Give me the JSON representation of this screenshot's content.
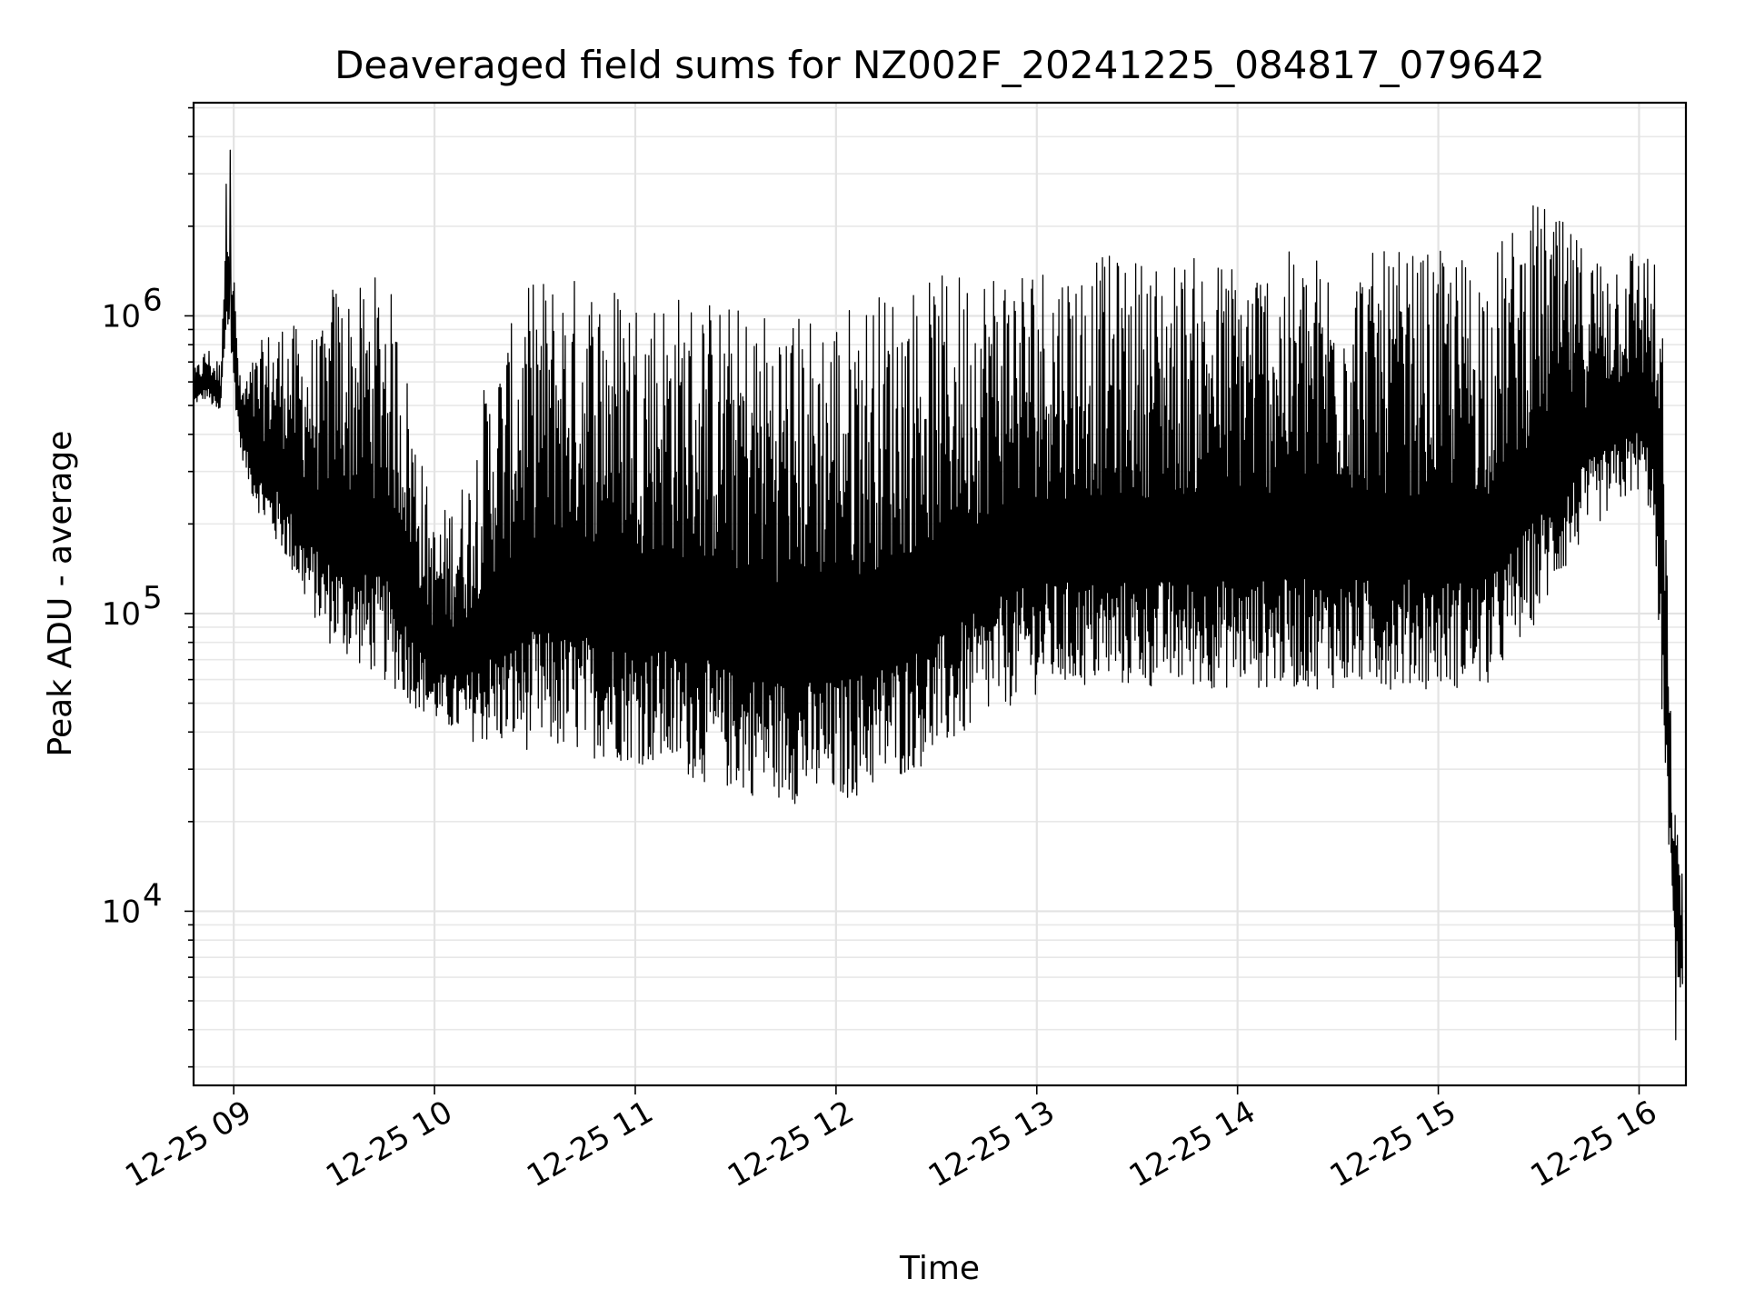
{
  "chart_data": {
    "type": "line",
    "title": "Deaveraged field sums for NZ002F_20241225_084817_079642",
    "xlabel": "Time",
    "ylabel": "Peak ADU - average",
    "yscale": "log",
    "ylim": [
      2600,
      5200000
    ],
    "xlim": [
      "2024-12-25 08:48",
      "2024-12-25 16:14"
    ],
    "x_ticks": [
      "2024-12-25 09:00",
      "2024-12-25 10:00",
      "2024-12-25 11:00",
      "2024-12-25 12:00",
      "2024-12-25 13:00",
      "2024-12-25 14:00",
      "2024-12-25 15:00",
      "2024-12-25 16:00"
    ],
    "x_tick_labels": [
      "12-25 09",
      "12-25 10",
      "12-25 11",
      "12-25 12",
      "12-25 13",
      "12-25 14",
      "12-25 15",
      "12-25 16"
    ],
    "y_major_ticks": [
      10000,
      100000,
      1000000
    ],
    "y_tick_labels": [
      "10",
      "10",
      "10"
    ],
    "y_tick_exponents": [
      "4",
      "5",
      "6"
    ],
    "grid": true,
    "line_color": "#000000",
    "series": [
      {
        "x": [
          "2024-12-25 08:48",
          "2024-12-25 08:52",
          "2024-12-25 08:56",
          "2024-12-25 08:58",
          "2024-12-25 09:00",
          "2024-12-25 09:02",
          "2024-12-25 09:05",
          "2024-12-25 09:10",
          "2024-12-25 09:15",
          "2024-12-25 09:20",
          "2024-12-25 09:27",
          "2024-12-25 09:30",
          "2024-12-25 09:35",
          "2024-12-25 09:40",
          "2024-12-25 09:45",
          "2024-12-25 09:50",
          "2024-12-25 09:55",
          "2024-12-25 10:00",
          "2024-12-25 10:05",
          "2024-12-25 10:10",
          "2024-12-25 10:15",
          "2024-12-25 10:20",
          "2024-12-25 10:30",
          "2024-12-25 10:40",
          "2024-12-25 10:50",
          "2024-12-25 11:00",
          "2024-12-25 11:10",
          "2024-12-25 11:20",
          "2024-12-25 11:30",
          "2024-12-25 11:40",
          "2024-12-25 11:50",
          "2024-12-25 12:00",
          "2024-12-25 12:10",
          "2024-12-25 12:20",
          "2024-12-25 12:30",
          "2024-12-25 12:40",
          "2024-12-25 12:50",
          "2024-12-25 13:00",
          "2024-12-25 13:15",
          "2024-12-25 13:30",
          "2024-12-25 13:45",
          "2024-12-25 14:00",
          "2024-12-25 14:15",
          "2024-12-25 14:30",
          "2024-12-25 14:45",
          "2024-12-25 15:00",
          "2024-12-25 15:15",
          "2024-12-25 15:30",
          "2024-12-25 15:45",
          "2024-12-25 16:00",
          "2024-12-25 16:04",
          "2024-12-25 16:07",
          "2024-12-25 16:09",
          "2024-12-25 16:11",
          "2024-12-25 16:13"
        ],
        "low": [
          500000,
          520000,
          450000,
          900000,
          550000,
          350000,
          250000,
          180000,
          150000,
          110000,
          80000,
          70000,
          65000,
          60000,
          55000,
          50000,
          45000,
          42000,
          38000,
          36000,
          34000,
          33000,
          32000,
          31000,
          30000,
          29000,
          27000,
          25000,
          23000,
          22000,
          21000,
          21000,
          23000,
          26000,
          30000,
          36000,
          44000,
          50000,
          52000,
          52000,
          52000,
          52000,
          52000,
          52000,
          52000,
          52000,
          52000,
          90000,
          180000,
          250000,
          200000,
          40000,
          15000,
          6000,
          5000
        ],
        "high": [
          650000,
          800000,
          700000,
          3500000,
          1500000,
          600000,
          700000,
          900000,
          1000000,
          900000,
          900000,
          1400000,
          1200000,
          1300000,
          1500000,
          900000,
          400000,
          200000,
          250000,
          300000,
          600000,
          800000,
          1400000,
          1400000,
          1400000,
          1300000,
          1250000,
          1200000,
          1100000,
          1100000,
          1050000,
          1100000,
          1200000,
          1300000,
          1350000,
          1500000,
          1600000,
          1600000,
          1600000,
          1600000,
          1600000,
          1600000,
          1650000,
          1650000,
          1650000,
          1650000,
          1650000,
          2500000,
          1700000,
          1800000,
          1700000,
          1000000,
          60000,
          20000,
          16000
        ],
        "min_value": 3700,
        "max_value": 3600000
      }
    ]
  }
}
